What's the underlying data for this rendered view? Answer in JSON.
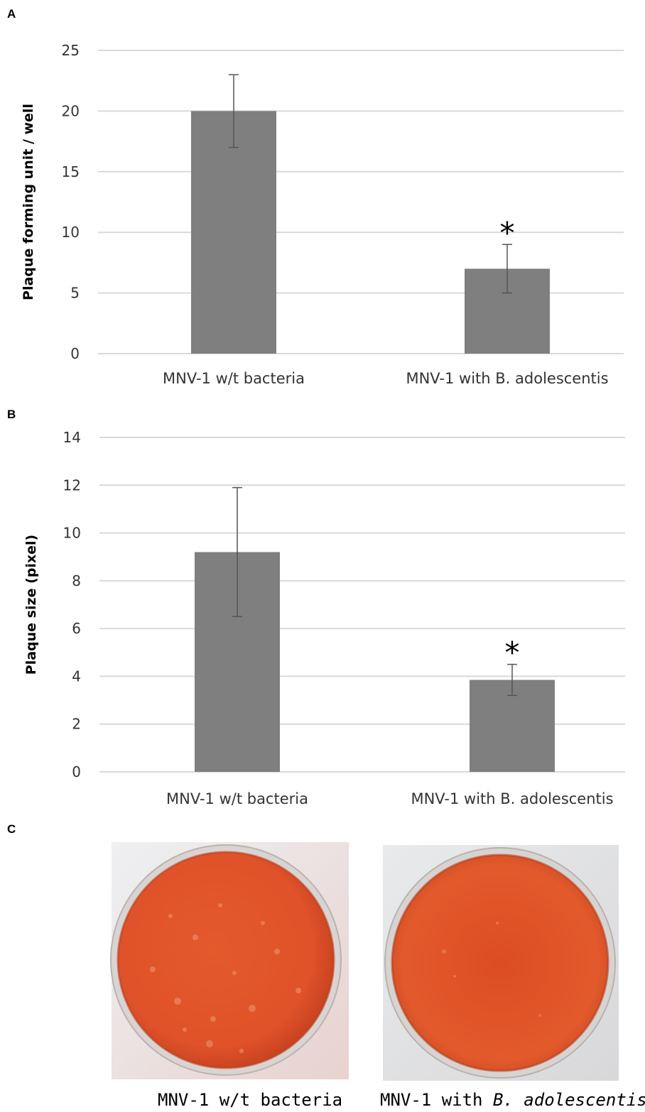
{
  "panels": {
    "a_label": "A",
    "b_label": "B",
    "c_label": "C"
  },
  "chart_data": [
    {
      "type": "bar",
      "panel": "A",
      "categories": [
        "MNV-1 w/t bacteria",
        "MNV-1 with B. adolescentis"
      ],
      "values": [
        20,
        7
      ],
      "errors": [
        3,
        2
      ],
      "significance": [
        "",
        "*"
      ],
      "ylabel": "Plaque forming unit / well",
      "xlabel": "",
      "ylim": [
        0,
        25
      ],
      "yticks": [
        0,
        5,
        10,
        15,
        20,
        25
      ],
      "grid": true,
      "legend": "none",
      "bar_color": "#7f7f7f",
      "grid_color": "#d9d9d9"
    },
    {
      "type": "bar",
      "panel": "B",
      "categories": [
        "MNV-1 w/t bacteria",
        "MNV-1 with B. adolescentis"
      ],
      "values": [
        9.2,
        3.85
      ],
      "errors": [
        2.7,
        0.65
      ],
      "significance": [
        "",
        "*"
      ],
      "ylabel": "Plaque size (pixel)",
      "xlabel": "",
      "ylim": [
        0,
        14
      ],
      "yticks": [
        0,
        2,
        4,
        6,
        8,
        10,
        12,
        14
      ],
      "grid": true,
      "legend": "none",
      "bar_color": "#7f7f7f",
      "grid_color": "#d9d9d9"
    }
  ],
  "photos": {
    "left_caption": "MNV-1 w/t bacteria",
    "right_caption_prefix": "MNV-1 with ",
    "right_caption_italic": "B. adolescentis",
    "medium_color": "#e2542a",
    "rim_color": "#c9c4c0"
  }
}
